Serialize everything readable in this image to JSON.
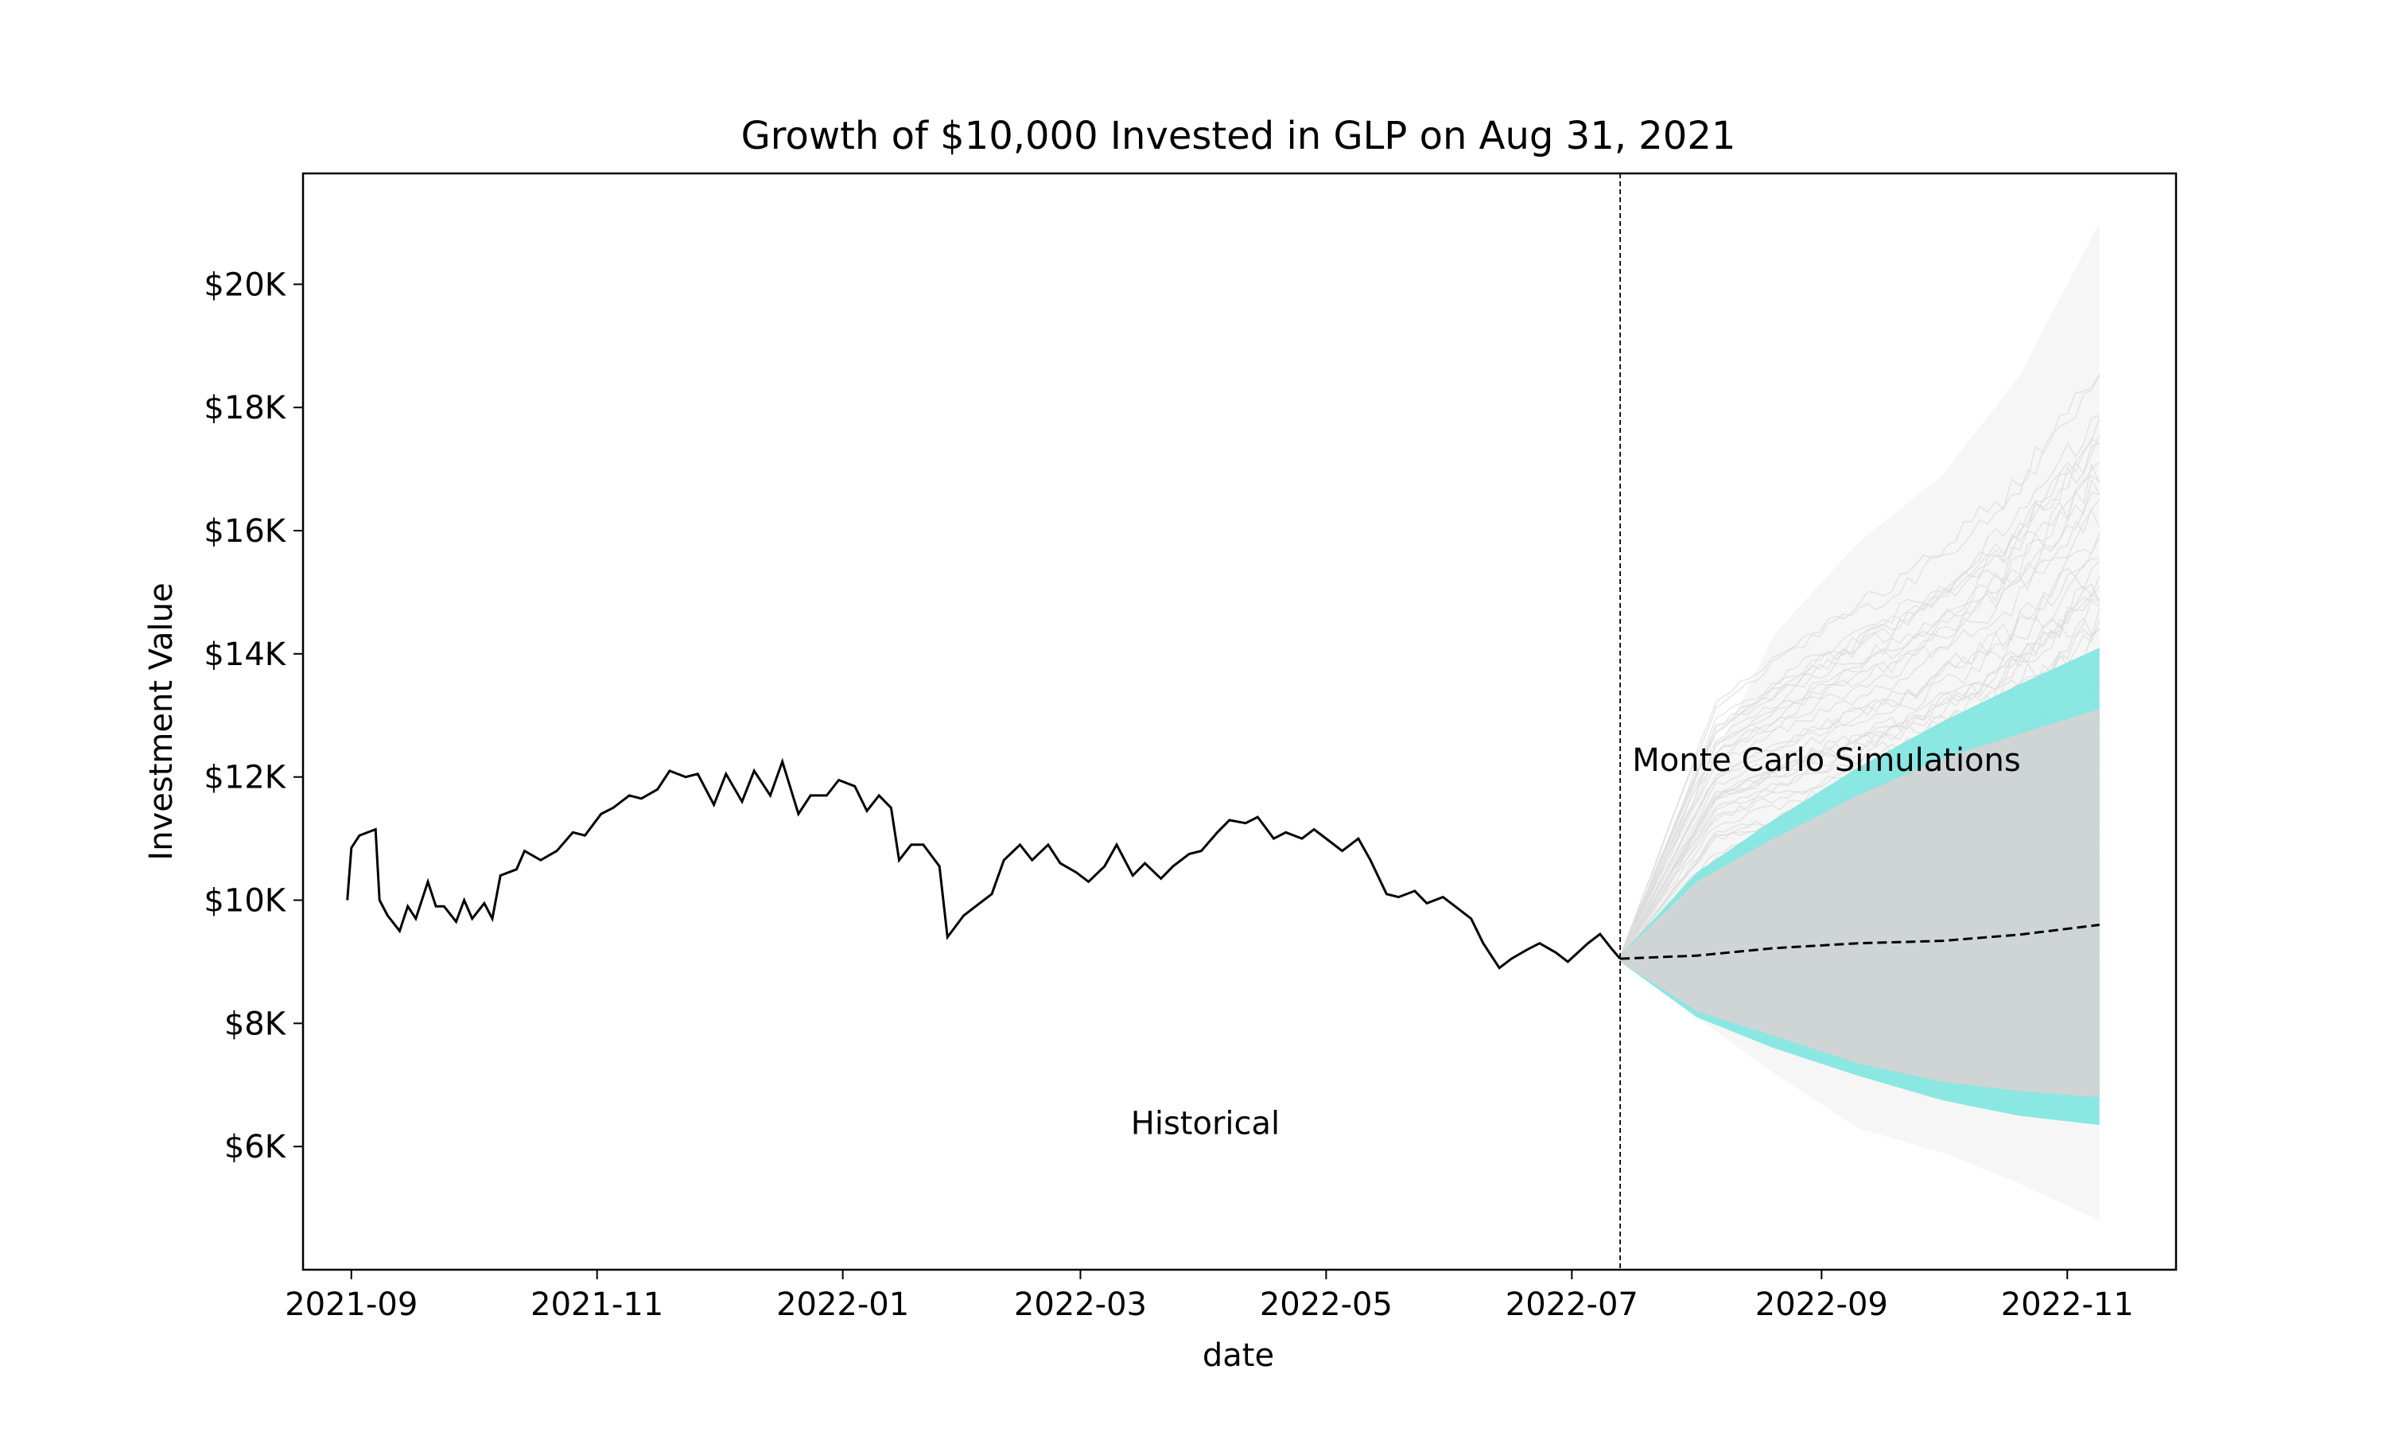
{
  "chart_data": {
    "type": "line",
    "title": "Growth of $10,000 Invested in GLP on Aug 31, 2021",
    "xlabel": "date",
    "ylabel": "Investment Value",
    "x_range": [
      "2021-08-20",
      "2022-11-28"
    ],
    "ylim": [
      4000,
      21800
    ],
    "x_ticks": [
      "2021-09-01",
      "2021-11-01",
      "2022-01-01",
      "2022-03-01",
      "2022-05-01",
      "2022-07-01",
      "2022-09-01",
      "2022-11-01"
    ],
    "x_tick_labels": [
      "2021-09",
      "2021-11",
      "2022-01",
      "2022-03",
      "2022-05",
      "2022-07",
      "2022-09",
      "2022-11"
    ],
    "y_ticks": [
      6000,
      8000,
      10000,
      12000,
      14000,
      16000,
      18000,
      20000
    ],
    "y_tick_labels": [
      "$6K",
      "$8K",
      "$10K",
      "$12K",
      "$14K",
      "$16K",
      "$18K",
      "$20K"
    ],
    "split_date": "2022-07-13",
    "annotations": {
      "historical": {
        "text": "Historical",
        "x": "2022-04-01",
        "y": 6200
      },
      "simulations": {
        "text": "Monte Carlo Simulations",
        "x": "2022-07-16",
        "y": 12100
      }
    },
    "series": [
      {
        "style": "solid",
        "color": "#000000",
        "points": [
          [
            "2021-08-31",
            10000
          ],
          [
            "2021-09-01",
            10850
          ],
          [
            "2021-09-03",
            11050
          ],
          [
            "2021-09-07",
            11150
          ],
          [
            "2021-09-08",
            10000
          ],
          [
            "2021-09-10",
            9750
          ],
          [
            "2021-09-13",
            9500
          ],
          [
            "2021-09-15",
            9900
          ],
          [
            "2021-09-17",
            9700
          ],
          [
            "2021-09-20",
            10300
          ],
          [
            "2021-09-22",
            9900
          ],
          [
            "2021-09-24",
            9900
          ],
          [
            "2021-09-27",
            9650
          ],
          [
            "2021-09-29",
            10000
          ],
          [
            "2021-10-01",
            9700
          ],
          [
            "2021-10-04",
            9950
          ],
          [
            "2021-10-06",
            9700
          ],
          [
            "2021-10-08",
            10400
          ],
          [
            "2021-10-12",
            10500
          ],
          [
            "2021-10-14",
            10800
          ],
          [
            "2021-10-18",
            10650
          ],
          [
            "2021-10-22",
            10800
          ],
          [
            "2021-10-26",
            11100
          ],
          [
            "2021-10-29",
            11050
          ],
          [
            "2021-11-02",
            11400
          ],
          [
            "2021-11-05",
            11500
          ],
          [
            "2021-11-09",
            11700
          ],
          [
            "2021-11-12",
            11650
          ],
          [
            "2021-11-16",
            11800
          ],
          [
            "2021-11-19",
            12100
          ],
          [
            "2021-11-23",
            12000
          ],
          [
            "2021-11-26",
            12050
          ],
          [
            "2021-11-30",
            11550
          ],
          [
            "2021-12-03",
            12050
          ],
          [
            "2021-12-07",
            11600
          ],
          [
            "2021-12-10",
            12100
          ],
          [
            "2021-12-14",
            11700
          ],
          [
            "2021-12-17",
            12250
          ],
          [
            "2021-12-21",
            11400
          ],
          [
            "2021-12-24",
            11700
          ],
          [
            "2021-12-28",
            11700
          ],
          [
            "2021-12-31",
            11950
          ],
          [
            "2022-01-04",
            11850
          ],
          [
            "2022-01-07",
            11450
          ],
          [
            "2022-01-10",
            11700
          ],
          [
            "2022-01-13",
            11500
          ],
          [
            "2022-01-15",
            10650
          ],
          [
            "2022-01-18",
            10900
          ],
          [
            "2022-01-21",
            10900
          ],
          [
            "2022-01-25",
            10550
          ],
          [
            "2022-01-27",
            9400
          ],
          [
            "2022-01-31",
            9750
          ],
          [
            "2022-02-03",
            9900
          ],
          [
            "2022-02-07",
            10100
          ],
          [
            "2022-02-10",
            10650
          ],
          [
            "2022-02-14",
            10900
          ],
          [
            "2022-02-17",
            10650
          ],
          [
            "2022-02-21",
            10900
          ],
          [
            "2022-02-24",
            10600
          ],
          [
            "2022-02-28",
            10450
          ],
          [
            "2022-03-03",
            10300
          ],
          [
            "2022-03-07",
            10550
          ],
          [
            "2022-03-10",
            10900
          ],
          [
            "2022-03-14",
            10400
          ],
          [
            "2022-03-17",
            10600
          ],
          [
            "2022-03-21",
            10350
          ],
          [
            "2022-03-24",
            10550
          ],
          [
            "2022-03-28",
            10750
          ],
          [
            "2022-03-31",
            10800
          ],
          [
            "2022-04-04",
            11100
          ],
          [
            "2022-04-07",
            11300
          ],
          [
            "2022-04-11",
            11250
          ],
          [
            "2022-04-14",
            11350
          ],
          [
            "2022-04-18",
            11000
          ],
          [
            "2022-04-21",
            11100
          ],
          [
            "2022-04-25",
            11000
          ],
          [
            "2022-04-28",
            11150
          ],
          [
            "2022-05-02",
            10950
          ],
          [
            "2022-05-05",
            10800
          ],
          [
            "2022-05-09",
            11000
          ],
          [
            "2022-05-12",
            10650
          ],
          [
            "2022-05-16",
            10100
          ],
          [
            "2022-05-19",
            10050
          ],
          [
            "2022-05-23",
            10150
          ],
          [
            "2022-05-26",
            9950
          ],
          [
            "2022-05-30",
            10050
          ],
          [
            "2022-06-02",
            9900
          ],
          [
            "2022-06-06",
            9700
          ],
          [
            "2022-06-09",
            9300
          ],
          [
            "2022-06-13",
            8900
          ],
          [
            "2022-06-16",
            9050
          ],
          [
            "2022-06-20",
            9200
          ],
          [
            "2022-06-23",
            9300
          ],
          [
            "2022-06-27",
            9150
          ],
          [
            "2022-06-30",
            9000
          ],
          [
            "2022-07-05",
            9300
          ],
          [
            "2022-07-08",
            9450
          ],
          [
            "2022-07-11",
            9200
          ],
          [
            "2022-07-13",
            9050
          ]
        ]
      },
      {
        "style": "dashed",
        "color": "#000000",
        "points": [
          [
            "2022-07-13",
            9050
          ],
          [
            "2022-08-01",
            9100
          ],
          [
            "2022-08-20",
            9220
          ],
          [
            "2022-09-10",
            9300
          ],
          [
            "2022-10-01",
            9340
          ],
          [
            "2022-10-20",
            9440
          ],
          [
            "2022-11-09",
            9600
          ]
        ]
      }
    ],
    "simulation_band": {
      "color": "#7fe6e0",
      "inner_color": "#d3d3d3",
      "dates": [
        "2022-07-13",
        "2022-08-01",
        "2022-08-20",
        "2022-09-10",
        "2022-10-01",
        "2022-10-20",
        "2022-11-09"
      ],
      "upper": [
        9100,
        10450,
        11300,
        12150,
        12900,
        13500,
        14100
      ],
      "lower": [
        9000,
        8100,
        7600,
        7150,
        6750,
        6500,
        6350
      ],
      "inner_upper": [
        9100,
        10300,
        11000,
        11700,
        12300,
        12700,
        13100
      ],
      "inner_lower": [
        9000,
        8200,
        7800,
        7350,
        7050,
        6900,
        6800
      ]
    },
    "simulation_paths_envelope": {
      "color": "#e6e6e6",
      "dates": [
        "2022-07-13",
        "2022-08-20",
        "2022-09-10",
        "2022-10-01",
        "2022-10-20",
        "2022-11-09"
      ],
      "upper": [
        9100,
        14300,
        15800,
        16900,
        18500,
        21000
      ],
      "lower": [
        9000,
        7200,
        6300,
        5900,
        5400,
        4800
      ]
    },
    "grid": false,
    "legend": "none"
  }
}
